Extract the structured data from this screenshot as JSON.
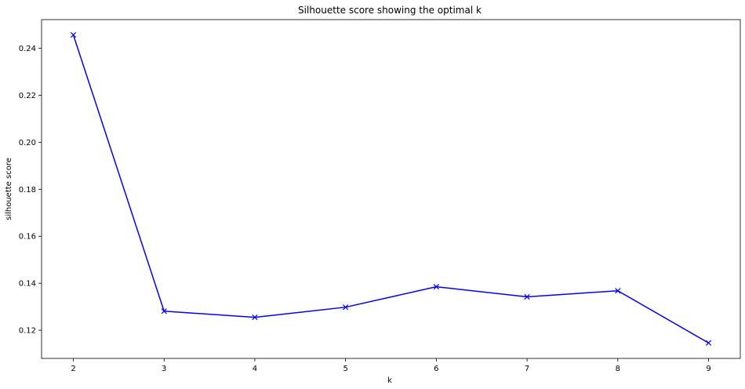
{
  "chart_data": {
    "type": "line",
    "title": "Silhouette score showing the optimal k",
    "xlabel": "k",
    "ylabel": "silhouette score",
    "x": [
      2,
      3,
      4,
      5,
      6,
      7,
      8,
      9
    ],
    "series": [
      {
        "values": [
          0.2457,
          0.1281,
          0.1255,
          0.1298,
          0.1385,
          0.1342,
          0.1368,
          0.1146
        ],
        "color": "#0000ff",
        "marker": "x"
      }
    ],
    "xlim": [
      1.65,
      9.35
    ],
    "ylim": [
      0.108,
      0.2522
    ],
    "xticks": [
      2,
      3,
      4,
      5,
      6,
      7,
      8,
      9
    ],
    "yticks": [
      0.12,
      0.14,
      0.16,
      0.18,
      0.2,
      0.22,
      0.24
    ],
    "ytick_labels": [
      "0.12",
      "0.14",
      "0.16",
      "0.18",
      "0.20",
      "0.22",
      "0.24"
    ],
    "grid": false,
    "legend": false
  }
}
